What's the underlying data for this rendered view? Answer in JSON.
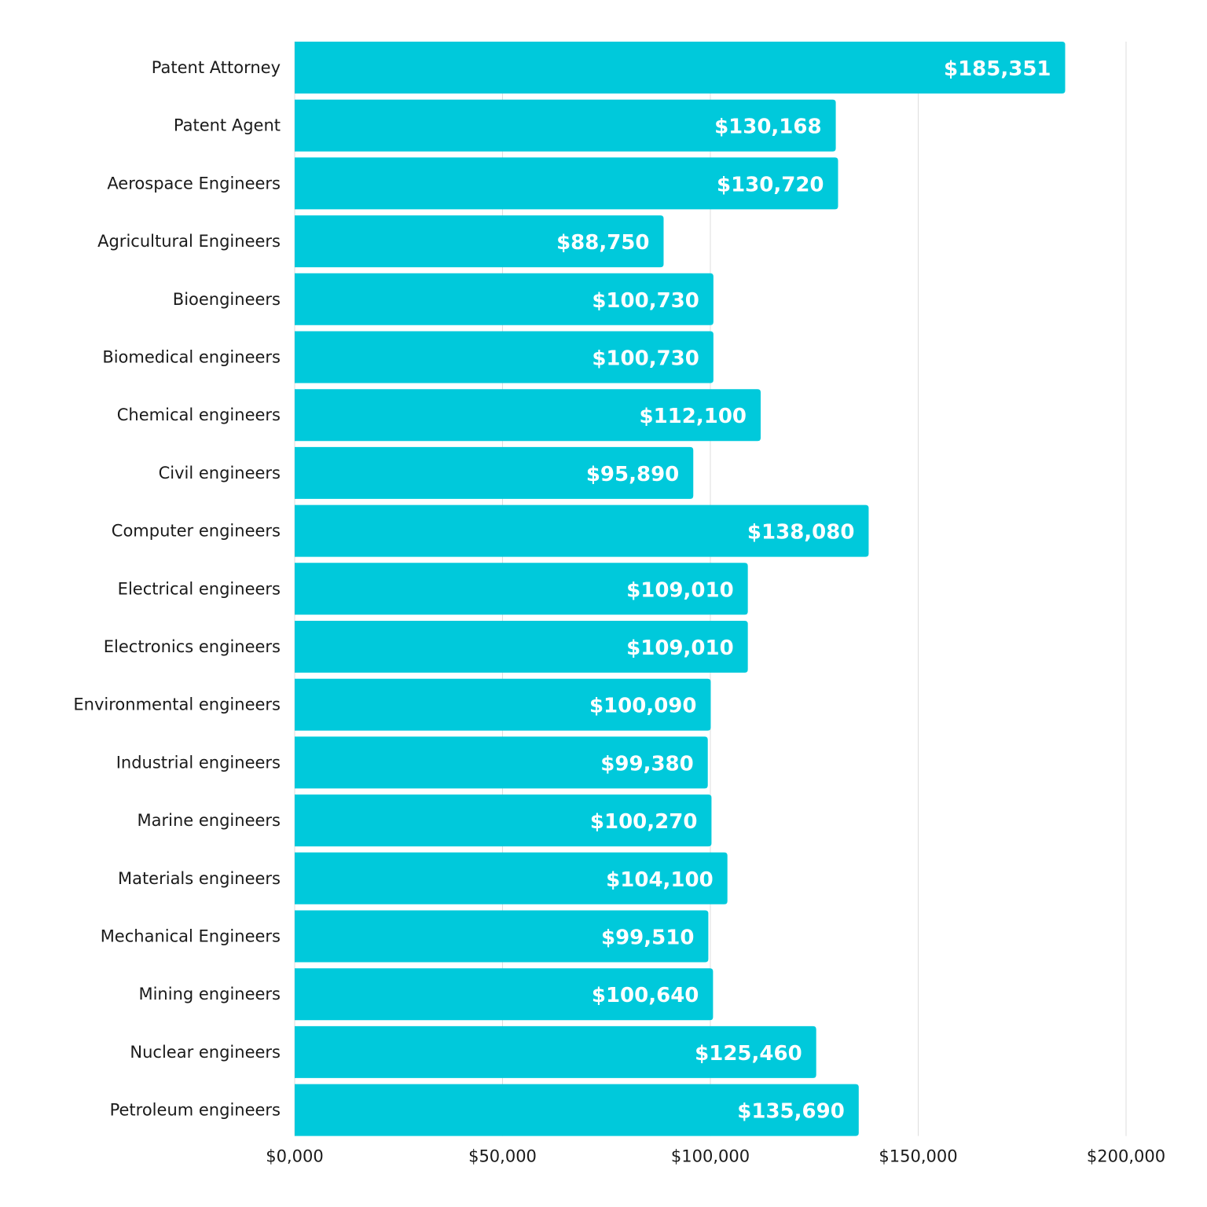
{
  "chart_data": {
    "type": "bar",
    "orientation": "horizontal",
    "categories": [
      "Patent Attorney",
      "Patent Agent",
      "Aerospace Engineers",
      "Agricultural Engineers",
      "Bioengineers",
      "Biomedical engineers",
      "Chemical engineers",
      "Civil engineers",
      "Computer engineers",
      "Electrical engineers",
      "Electronics engineers",
      "Environmental engineers",
      "Industrial engineers",
      "Marine engineers",
      "Materials engineers",
      "Mechanical Engineers",
      "Mining engineers",
      "Nuclear engineers",
      "Petroleum engineers"
    ],
    "values": [
      185351,
      130168,
      130720,
      88750,
      100730,
      100730,
      112100,
      95890,
      138080,
      109010,
      109010,
      100090,
      99380,
      100270,
      104100,
      99510,
      100640,
      125460,
      135690
    ],
    "data_labels": [
      "$185,351",
      "$130,168",
      "$130,720",
      "$88,750",
      "$100,730",
      "$100,730",
      "$112,100",
      "$95,890",
      "$138,080",
      "$109,010",
      "$109,010",
      "$100,090",
      "$99,380",
      "$100,270",
      "$104,100",
      "$99,510",
      "$100,640",
      "$125,460",
      "$135,690"
    ],
    "xlim": [
      0,
      200000
    ],
    "x_ticks": [
      0,
      50000,
      100000,
      150000,
      200000
    ],
    "x_tick_labels": [
      "$0,000",
      "$50,000",
      "$100,000",
      "$150,000",
      "$200,000"
    ],
    "title": "",
    "xlabel": "",
    "ylabel": "",
    "grid": "vertical",
    "legend": "none",
    "bar_color": "#00C9DB",
    "grid_color": "#dddddd"
  }
}
